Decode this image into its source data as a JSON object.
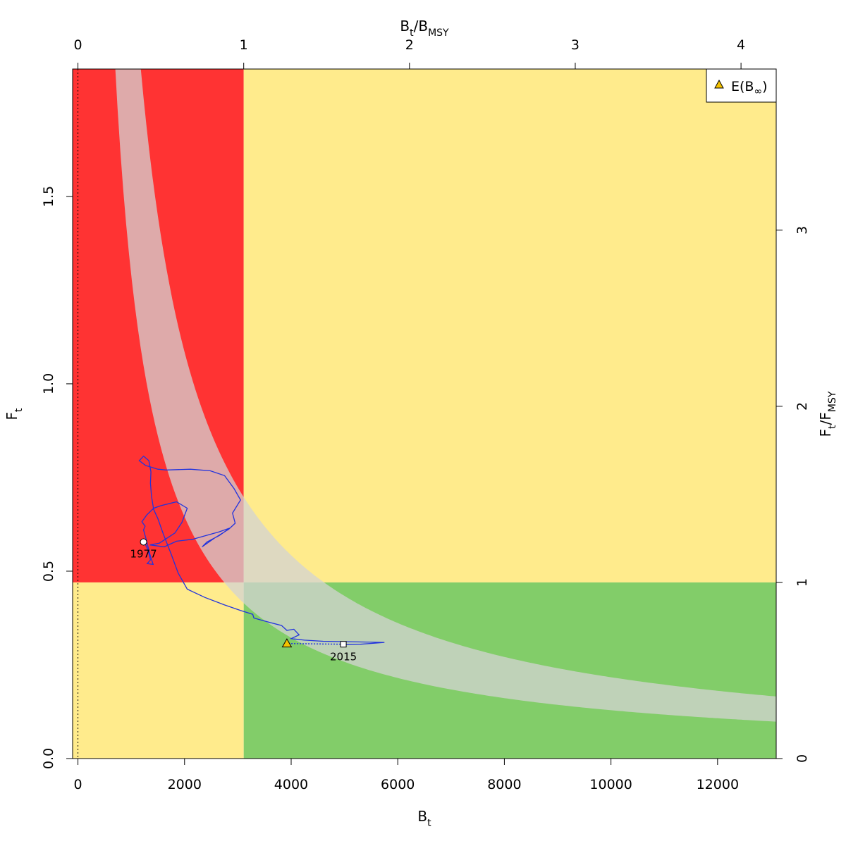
{
  "chart_data": {
    "type": "line",
    "title": "",
    "xlabel": "B",
    "xlabel_sub": "t",
    "ylabel": "F",
    "ylabel_sub": "t",
    "top_label": {
      "a": "B",
      "a_sub": "t",
      "sep": "/",
      "b": "B",
      "b_sub": "MSY"
    },
    "right_label": {
      "a": "F",
      "a_sub": "t",
      "sep": "/",
      "b": "F",
      "b_sub": "MSY"
    },
    "xlim": [
      -100,
      13100
    ],
    "ylim": [
      0,
      1.84
    ],
    "x_ticks": [
      "0",
      "2000",
      "4000",
      "6000",
      "8000",
      "10000",
      "12000"
    ],
    "x_tick_values": [
      0,
      2000,
      4000,
      6000,
      8000,
      10000,
      12000
    ],
    "y_ticks": [
      "0.0",
      "0.5",
      "1.0",
      "1.5"
    ],
    "y_tick_values": [
      0,
      0.5,
      1.0,
      1.5
    ],
    "top_ticks": [
      "0",
      "1",
      "2",
      "3",
      "4"
    ],
    "top_tick_values": [
      0,
      1,
      2,
      3,
      4
    ],
    "right_ticks": [
      "0",
      "1",
      "2",
      "3"
    ],
    "right_tick_values": [
      0,
      1,
      2,
      3
    ],
    "bmsy": 3110,
    "fmsy": 0.47,
    "zone_colors": {
      "red": "#ff3333",
      "yellow": "#ffeb8c",
      "green": "#82cd69",
      "band": "#d3d3d3",
      "trajectory": "#2233dd"
    },
    "msy_band": {
      "c_low": 1290,
      "c_high": 2170
    },
    "trajectory": [
      [
        1230,
        0.578
      ],
      [
        1290,
        0.565
      ],
      [
        1330,
        0.548
      ],
      [
        1360,
        0.53
      ],
      [
        1300,
        0.52
      ],
      [
        1410,
        0.518
      ],
      [
        1350,
        0.545
      ],
      [
        1280,
        0.585
      ],
      [
        1230,
        0.61
      ],
      [
        1260,
        0.62
      ],
      [
        1200,
        0.632
      ],
      [
        1290,
        0.65
      ],
      [
        1420,
        0.668
      ],
      [
        1560,
        0.675
      ],
      [
        1850,
        0.685
      ],
      [
        2050,
        0.668
      ],
      [
        1950,
        0.63
      ],
      [
        1820,
        0.602
      ],
      [
        1530,
        0.575
      ],
      [
        1350,
        0.57
      ],
      [
        1620,
        0.565
      ],
      [
        1850,
        0.58
      ],
      [
        2150,
        0.585
      ],
      [
        2650,
        0.605
      ],
      [
        2850,
        0.615
      ],
      [
        2650,
        0.595
      ],
      [
        2420,
        0.578
      ],
      [
        2330,
        0.565
      ],
      [
        2560,
        0.588
      ],
      [
        2830,
        0.612
      ],
      [
        2950,
        0.628
      ],
      [
        2900,
        0.655
      ],
      [
        3050,
        0.69
      ],
      [
        2930,
        0.72
      ],
      [
        2750,
        0.755
      ],
      [
        2480,
        0.768
      ],
      [
        2110,
        0.772
      ],
      [
        1660,
        0.77
      ],
      [
        1500,
        0.772
      ],
      [
        1270,
        0.782
      ],
      [
        1150,
        0.795
      ],
      [
        1230,
        0.807
      ],
      [
        1330,
        0.795
      ],
      [
        1370,
        0.765
      ],
      [
        1360,
        0.735
      ],
      [
        1380,
        0.7
      ],
      [
        1420,
        0.665
      ],
      [
        1500,
        0.64
      ],
      [
        1600,
        0.6
      ],
      [
        1750,
        0.545
      ],
      [
        1880,
        0.495
      ],
      [
        2050,
        0.452
      ],
      [
        2380,
        0.43
      ],
      [
        2750,
        0.41
      ],
      [
        3050,
        0.395
      ],
      [
        3280,
        0.385
      ],
      [
        3300,
        0.375
      ],
      [
        3550,
        0.365
      ],
      [
        3820,
        0.355
      ],
      [
        3920,
        0.342
      ],
      [
        4050,
        0.345
      ],
      [
        4150,
        0.33
      ],
      [
        4000,
        0.32
      ],
      [
        4250,
        0.316
      ],
      [
        4600,
        0.313
      ],
      [
        5000,
        0.312
      ],
      [
        5750,
        0.31
      ],
      [
        5300,
        0.305
      ],
      [
        4980,
        0.304
      ]
    ],
    "projection": {
      "from": [
        4980,
        0.305
      ],
      "to": [
        3920,
        0.307
      ]
    },
    "points": {
      "start": {
        "x": 1230,
        "y": 0.578,
        "label": "1977"
      },
      "end": {
        "x": 4980,
        "y": 0.305,
        "label": "2015"
      },
      "equilibrium": {
        "x": 3920,
        "y": 0.307
      }
    },
    "legend": {
      "position": "top-right",
      "label": "E(B",
      "label_sym": "∞",
      "label_end": ")",
      "marker_color": "#f4c200"
    }
  }
}
